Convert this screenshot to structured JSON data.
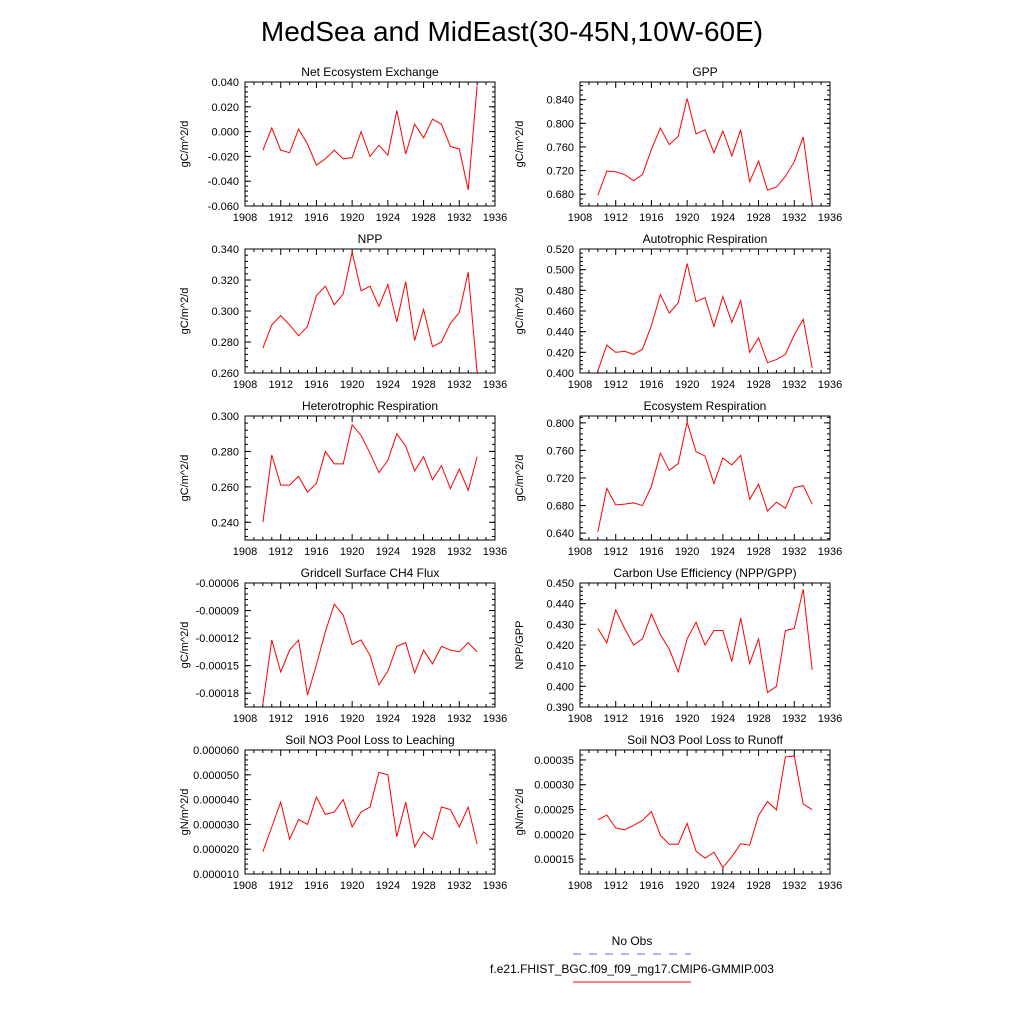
{
  "figure": {
    "title": "MedSea and MidEast(30-45N,10W-60E)",
    "legend": [
      {
        "label": "No Obs",
        "color": "#6666ff",
        "dash": "8,8"
      },
      {
        "label": "f.e21.FHIST_BGC.f09_f09_mg17.CMIP6-GMMIP.003",
        "color": "#ff0000",
        "dash": ""
      }
    ]
  },
  "chart_data": [
    {
      "type": "line",
      "title": "Net Ecosystem Exchange",
      "ylabel": "gC/m^2/d",
      "xlim": [
        1908,
        1936
      ],
      "ylim": [
        -0.06,
        0.04
      ],
      "xticks": [
        "1908",
        "1912",
        "1916",
        "1920",
        "1924",
        "1928",
        "1932",
        "1936"
      ],
      "yticks": [
        "-0.060",
        "-0.040",
        "-0.020",
        "0.000",
        "0.020",
        "0.040"
      ],
      "x": [
        1910,
        1911,
        1912,
        1913,
        1914,
        1915,
        1916,
        1917,
        1918,
        1919,
        1920,
        1921,
        1922,
        1923,
        1924,
        1925,
        1926,
        1927,
        1928,
        1929,
        1930,
        1931,
        1932,
        1933,
        1934
      ],
      "series": [
        {
          "color": "#ff0000",
          "values": [
            -0.015,
            0.003,
            -0.015,
            -0.017,
            0.002,
            -0.01,
            -0.027,
            -0.022,
            -0.015,
            -0.022,
            -0.021,
            0.0,
            -0.02,
            -0.011,
            -0.019,
            0.017,
            -0.018,
            0.006,
            -0.005,
            0.01,
            0.006,
            -0.012,
            -0.014,
            -0.047,
            0.037
          ]
        }
      ]
    },
    {
      "type": "line",
      "title": "GPP",
      "ylabel": "gC/m^2/d",
      "xlim": [
        1908,
        1936
      ],
      "ylim": [
        0.66,
        0.87
      ],
      "xticks": [
        "1908",
        "1912",
        "1916",
        "1920",
        "1924",
        "1928",
        "1932",
        "1936"
      ],
      "yticks": [
        "0.680",
        "0.720",
        "0.760",
        "0.800",
        "0.840"
      ],
      "x": [
        1910,
        1911,
        1912,
        1913,
        1914,
        1915,
        1916,
        1917,
        1918,
        1919,
        1920,
        1921,
        1922,
        1923,
        1924,
        1925,
        1926,
        1927,
        1928,
        1929,
        1930,
        1931,
        1932,
        1933,
        1934
      ],
      "series": [
        {
          "color": "#ff0000",
          "values": [
            0.678,
            0.719,
            0.718,
            0.713,
            0.703,
            0.713,
            0.756,
            0.792,
            0.764,
            0.778,
            0.842,
            0.782,
            0.789,
            0.75,
            0.787,
            0.745,
            0.789,
            0.701,
            0.736,
            0.687,
            0.692,
            0.71,
            0.735,
            0.777,
            0.665
          ]
        }
      ]
    },
    {
      "type": "line",
      "title": "NPP",
      "ylabel": "gC/m^2/d",
      "xlim": [
        1908,
        1936
      ],
      "ylim": [
        0.26,
        0.34
      ],
      "xticks": [
        "1908",
        "1912",
        "1916",
        "1920",
        "1924",
        "1928",
        "1932",
        "1936"
      ],
      "yticks": [
        "0.260",
        "0.280",
        "0.300",
        "0.320",
        "0.340"
      ],
      "x": [
        1910,
        1911,
        1912,
        1913,
        1914,
        1915,
        1916,
        1917,
        1918,
        1919,
        1920,
        1921,
        1922,
        1923,
        1924,
        1925,
        1926,
        1927,
        1928,
        1929,
        1930,
        1931,
        1932,
        1933,
        1934
      ],
      "series": [
        {
          "color": "#ff0000",
          "values": [
            0.276,
            0.291,
            0.297,
            0.291,
            0.284,
            0.29,
            0.31,
            0.316,
            0.304,
            0.311,
            0.338,
            0.313,
            0.316,
            0.303,
            0.317,
            0.293,
            0.319,
            0.281,
            0.301,
            0.277,
            0.28,
            0.292,
            0.299,
            0.325,
            0.26
          ]
        }
      ]
    },
    {
      "type": "line",
      "title": "Autotrophic Respiration",
      "ylabel": "gC/m^2/d",
      "xlim": [
        1908,
        1936
      ],
      "ylim": [
        0.4,
        0.52
      ],
      "xticks": [
        "1908",
        "1912",
        "1916",
        "1920",
        "1924",
        "1928",
        "1932",
        "1936"
      ],
      "yticks": [
        "0.400",
        "0.420",
        "0.440",
        "0.460",
        "0.480",
        "0.500",
        "0.520"
      ],
      "x": [
        1910,
        1911,
        1912,
        1913,
        1914,
        1915,
        1916,
        1917,
        1918,
        1919,
        1920,
        1921,
        1922,
        1923,
        1924,
        1925,
        1926,
        1927,
        1928,
        1929,
        1930,
        1931,
        1932,
        1933,
        1934
      ],
      "series": [
        {
          "color": "#ff0000",
          "values": [
            0.402,
            0.427,
            0.42,
            0.421,
            0.418,
            0.423,
            0.446,
            0.476,
            0.458,
            0.468,
            0.506,
            0.469,
            0.473,
            0.445,
            0.474,
            0.449,
            0.47,
            0.42,
            0.434,
            0.41,
            0.413,
            0.418,
            0.437,
            0.452,
            0.405
          ]
        }
      ]
    },
    {
      "type": "line",
      "title": "Heterotrophic Respiration",
      "ylabel": "gC/m^2/d",
      "xlim": [
        1908,
        1936
      ],
      "ylim": [
        0.23,
        0.3
      ],
      "xticks": [
        "1908",
        "1912",
        "1916",
        "1920",
        "1924",
        "1928",
        "1932",
        "1936"
      ],
      "yticks": [
        "0.240",
        "0.260",
        "0.280",
        "0.300"
      ],
      "x": [
        1910,
        1911,
        1912,
        1913,
        1914,
        1915,
        1916,
        1917,
        1918,
        1919,
        1920,
        1921,
        1922,
        1923,
        1924,
        1925,
        1926,
        1927,
        1928,
        1929,
        1930,
        1931,
        1932,
        1933,
        1934
      ],
      "series": [
        {
          "color": "#ff0000",
          "values": [
            0.24,
            0.278,
            0.261,
            0.261,
            0.266,
            0.257,
            0.262,
            0.28,
            0.273,
            0.273,
            0.295,
            0.289,
            0.279,
            0.268,
            0.275,
            0.29,
            0.283,
            0.269,
            0.277,
            0.264,
            0.272,
            0.259,
            0.27,
            0.258,
            0.277
          ]
        }
      ]
    },
    {
      "type": "line",
      "title": "Ecosystem Respiration",
      "ylabel": "gC/m^2/d",
      "xlim": [
        1908,
        1936
      ],
      "ylim": [
        0.63,
        0.81
      ],
      "xticks": [
        "1908",
        "1912",
        "1916",
        "1920",
        "1924",
        "1928",
        "1932",
        "1936"
      ],
      "yticks": [
        "0.640",
        "0.680",
        "0.720",
        "0.760",
        "0.800"
      ],
      "x": [
        1910,
        1911,
        1912,
        1913,
        1914,
        1915,
        1916,
        1917,
        1918,
        1919,
        1920,
        1921,
        1922,
        1923,
        1924,
        1925,
        1926,
        1927,
        1928,
        1929,
        1930,
        1931,
        1932,
        1933,
        1934
      ],
      "series": [
        {
          "color": "#ff0000",
          "values": [
            0.642,
            0.705,
            0.681,
            0.682,
            0.684,
            0.68,
            0.708,
            0.756,
            0.731,
            0.741,
            0.801,
            0.758,
            0.752,
            0.712,
            0.749,
            0.739,
            0.753,
            0.689,
            0.711,
            0.672,
            0.685,
            0.676,
            0.706,
            0.709,
            0.682
          ]
        }
      ]
    },
    {
      "type": "line",
      "title": "Gridcell Surface CH4 Flux",
      "ylabel": "gC/m^2/d",
      "xlim": [
        1908,
        1936
      ],
      "ylim": [
        -0.000195,
        -6e-05
      ],
      "xticks": [
        "1908",
        "1912",
        "1916",
        "1920",
        "1924",
        "1928",
        "1932",
        "1936"
      ],
      "yticks": [
        "-0.00018",
        "-0.00015",
        "-0.00012",
        "-0.00009",
        "-0.00006"
      ],
      "x": [
        1910,
        1911,
        1912,
        1913,
        1914,
        1915,
        1916,
        1917,
        1918,
        1919,
        1920,
        1921,
        1922,
        1923,
        1924,
        1925,
        1926,
        1927,
        1928,
        1929,
        1930,
        1931,
        1932,
        1933,
        1934
      ],
      "series": [
        {
          "color": "#ff0000",
          "values": [
            -0.000192,
            -0.000122,
            -0.000157,
            -0.000133,
            -0.000122,
            -0.000182,
            -0.000149,
            -0.000113,
            -8.3e-05,
            -9.5e-05,
            -0.000127,
            -0.000122,
            -0.000139,
            -0.000171,
            -0.000156,
            -0.000129,
            -0.000125,
            -0.000158,
            -0.000133,
            -0.000148,
            -0.000129,
            -0.000133,
            -0.000135,
            -0.000125,
            -0.000135
          ]
        }
      ]
    },
    {
      "type": "line",
      "title": "Carbon Use Efficiency (NPP/GPP)",
      "ylabel": "NPP/GPP",
      "xlim": [
        1908,
        1936
      ],
      "ylim": [
        0.39,
        0.45
      ],
      "xticks": [
        "1908",
        "1912",
        "1916",
        "1920",
        "1924",
        "1928",
        "1932",
        "1936"
      ],
      "yticks": [
        "0.390",
        "0.400",
        "0.410",
        "0.420",
        "0.430",
        "0.440",
        "0.450"
      ],
      "x": [
        1910,
        1911,
        1912,
        1913,
        1914,
        1915,
        1916,
        1917,
        1918,
        1919,
        1920,
        1921,
        1922,
        1923,
        1924,
        1925,
        1926,
        1927,
        1928,
        1929,
        1930,
        1931,
        1932,
        1933,
        1934
      ],
      "series": [
        {
          "color": "#ff0000",
          "values": [
            0.428,
            0.421,
            0.437,
            0.428,
            0.42,
            0.423,
            0.435,
            0.425,
            0.418,
            0.407,
            0.423,
            0.431,
            0.42,
            0.427,
            0.427,
            0.412,
            0.433,
            0.411,
            0.423,
            0.397,
            0.4,
            0.427,
            0.428,
            0.447,
            0.408
          ]
        }
      ]
    },
    {
      "type": "line",
      "title": "Soil NO3 Pool Loss to Leaching",
      "ylabel": "gN/m^2/d",
      "xlim": [
        1908,
        1936
      ],
      "ylim": [
        1e-05,
        6e-05
      ],
      "xticks": [
        "1908",
        "1912",
        "1916",
        "1920",
        "1924",
        "1928",
        "1932",
        "1936"
      ],
      "yticks": [
        "0.000010",
        "0.000020",
        "0.000030",
        "0.000040",
        "0.000050",
        "0.000060"
      ],
      "x": [
        1910,
        1911,
        1912,
        1913,
        1914,
        1915,
        1916,
        1917,
        1918,
        1919,
        1920,
        1921,
        1922,
        1923,
        1924,
        1925,
        1926,
        1927,
        1928,
        1929,
        1930,
        1931,
        1932,
        1933,
        1934
      ],
      "series": [
        {
          "color": "#ff0000",
          "values": [
            1.9e-05,
            2.9e-05,
            3.9e-05,
            2.4e-05,
            3.2e-05,
            3e-05,
            4.1e-05,
            3.4e-05,
            3.5e-05,
            4e-05,
            2.9e-05,
            3.5e-05,
            3.7e-05,
            5.1e-05,
            5e-05,
            2.5e-05,
            3.9e-05,
            2.1e-05,
            2.7e-05,
            2.4e-05,
            3.7e-05,
            3.6e-05,
            2.9e-05,
            3.7e-05,
            2.2e-05
          ]
        }
      ]
    },
    {
      "type": "line",
      "title": "Soil NO3 Pool Loss to Runoff",
      "ylabel": "gN/m^2/d",
      "xlim": [
        1908,
        1936
      ],
      "ylim": [
        0.00012,
        0.00037
      ],
      "xticks": [
        "1908",
        "1912",
        "1916",
        "1920",
        "1924",
        "1928",
        "1932",
        "1936"
      ],
      "yticks": [
        "0.00015",
        "0.00020",
        "0.00025",
        "0.00030",
        "0.00035"
      ],
      "x": [
        1910,
        1911,
        1912,
        1913,
        1914,
        1915,
        1916,
        1917,
        1918,
        1919,
        1920,
        1921,
        1922,
        1923,
        1924,
        1925,
        1926,
        1927,
        1928,
        1929,
        1930,
        1931,
        1932,
        1933,
        1934
      ],
      "series": [
        {
          "color": "#ff0000",
          "values": [
            0.000229,
            0.000239,
            0.000213,
            0.000209,
            0.000218,
            0.000228,
            0.000246,
            0.000198,
            0.00018,
            0.00018,
            0.000222,
            0.000166,
            0.000152,
            0.000164,
            0.000133,
            0.000155,
            0.000181,
            0.000178,
            0.000238,
            0.000266,
            0.000249,
            0.000356,
            0.000358,
            0.000261,
            0.00025
          ]
        }
      ]
    }
  ]
}
